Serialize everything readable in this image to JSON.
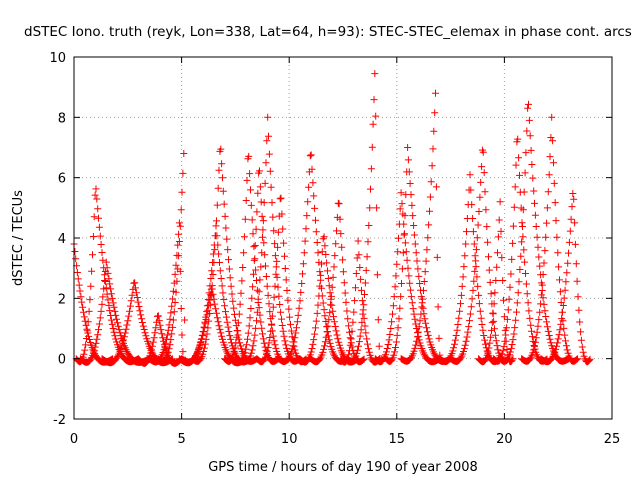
{
  "chart_data": {
    "type": "scatter",
    "title": "dSTEC Iono. truth (reyk, Lon=338, Lat=64, h=93): STEC-STEC_elemax in phase cont. arcs",
    "xlabel": "GPS time / hours of day 190 of year 2008",
    "ylabel": "dSTEC  / TECUs",
    "xlim": [
      0,
      25
    ],
    "ylim": [
      -2,
      10
    ],
    "xticks": [
      "0",
      "5",
      "10",
      "15",
      "20",
      "25"
    ],
    "yticks": [
      "-2",
      "0",
      "2",
      "4",
      "6",
      "8",
      "10"
    ],
    "grid": true,
    "marker": "+",
    "color": "#ff0000",
    "peaks": [
      {
        "x_peak": 0.0,
        "y_peak": 3.8,
        "x_start": 0.0,
        "x_end": 1.8
      },
      {
        "x_peak": 1.0,
        "y_peak": 5.8,
        "x_start": 0.1,
        "x_end": 3.0
      },
      {
        "x_peak": 1.5,
        "y_peak": 3.2,
        "x_start": 0.3,
        "x_end": 3.5
      },
      {
        "x_peak": 2.8,
        "y_peak": 2.6,
        "x_start": 1.3,
        "x_end": 4.6
      },
      {
        "x_peak": 3.9,
        "y_peak": 1.5,
        "x_start": 3.0,
        "x_end": 5.0
      },
      {
        "x_peak": 4.9,
        "y_peak": 4.5,
        "x_start": 3.5,
        "x_end": 5.2
      },
      {
        "x_peak": 5.1,
        "y_peak": 6.8,
        "x_start": 3.9,
        "x_end": 5.2
      },
      {
        "x_peak": 6.4,
        "y_peak": 2.4,
        "x_start": 4.9,
        "x_end": 8.0
      },
      {
        "x_peak": 6.6,
        "y_peak": 4.4,
        "x_start": 5.0,
        "x_end": 8.2
      },
      {
        "x_peak": 6.8,
        "y_peak": 7.2,
        "x_start": 5.5,
        "x_end": 8.5
      },
      {
        "x_peak": 8.1,
        "y_peak": 7.0,
        "x_start": 7.0,
        "x_end": 9.5
      },
      {
        "x_peak": 8.6,
        "y_peak": 6.5,
        "x_start": 7.5,
        "x_end": 10.0
      },
      {
        "x_peak": 9.0,
        "y_peak": 8.0,
        "x_start": 7.8,
        "x_end": 10.5
      },
      {
        "x_peak": 9.6,
        "y_peak": 5.6,
        "x_start": 8.5,
        "x_end": 10.8
      },
      {
        "x_peak": 11.0,
        "y_peak": 7.0,
        "x_start": 9.5,
        "x_end": 12.7
      },
      {
        "x_peak": 11.6,
        "y_peak": 4.2,
        "x_start": 10.5,
        "x_end": 13.2
      },
      {
        "x_peak": 12.3,
        "y_peak": 5.4,
        "x_start": 11.0,
        "x_end": 13.5
      },
      {
        "x_peak": 13.2,
        "y_peak": 3.9,
        "x_start": 12.4,
        "x_end": 14.2
      },
      {
        "x_peak": 14.0,
        "y_peak": 9.9,
        "x_start": 12.7,
        "x_end": 14.3
      },
      {
        "x_peak": 15.2,
        "y_peak": 5.5,
        "x_start": 14.0,
        "x_end": 17.0
      },
      {
        "x_peak": 15.5,
        "y_peak": 7.0,
        "x_start": 14.5,
        "x_end": 17.5
      },
      {
        "x_peak": 16.8,
        "y_peak": 8.8,
        "x_start": 15.2,
        "x_end": 17.1
      },
      {
        "x_peak": 18.4,
        "y_peak": 6.1,
        "x_start": 17.0,
        "x_end": 19.8
      },
      {
        "x_peak": 19.0,
        "y_peak": 7.2,
        "x_start": 17.5,
        "x_end": 20.2
      },
      {
        "x_peak": 19.8,
        "y_peak": 5.2,
        "x_start": 18.8,
        "x_end": 20.4
      },
      {
        "x_peak": 20.6,
        "y_peak": 7.6,
        "x_start": 19.5,
        "x_end": 22.0
      },
      {
        "x_peak": 21.1,
        "y_peak": 8.7,
        "x_start": 19.8,
        "x_end": 23.0
      },
      {
        "x_peak": 22.2,
        "y_peak": 8.0,
        "x_start": 20.8,
        "x_end": 23.4
      },
      {
        "x_peak": 23.2,
        "y_peak": 5.7,
        "x_start": 21.7,
        "x_end": 24.0
      }
    ]
  }
}
